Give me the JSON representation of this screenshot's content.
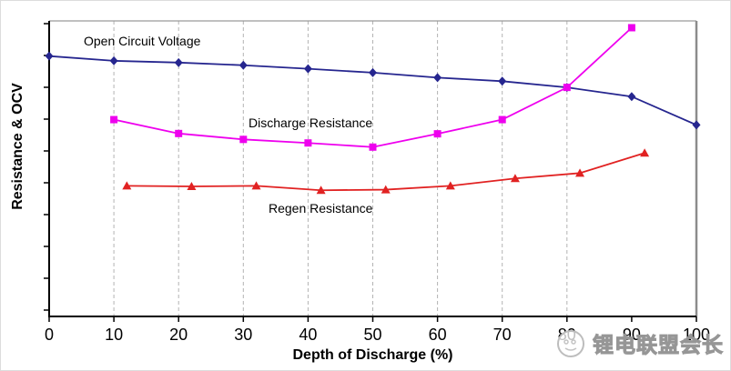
{
  "watermark": {
    "text": "锂电联盟会长",
    "logo": "circle-face-logo"
  },
  "chart_data": {
    "type": "line",
    "title": "",
    "xlabel": "Depth of Discharge (%)",
    "ylabel": "Resistance & OCV",
    "xlim": [
      0,
      100
    ],
    "ylim": [
      0,
      10
    ],
    "x_ticks": [
      0,
      10,
      20,
      30,
      40,
      50,
      60,
      70,
      80,
      90,
      100
    ],
    "x_tick_labels": [
      "0",
      "10",
      "20",
      "30",
      "40",
      "50",
      "60",
      "70",
      "80",
      "90",
      "100"
    ],
    "y_tick_labels": [],
    "y_axis_note": "no numeric labels on y axis (relative 0-10 scale used)",
    "grid_x": [
      10,
      20,
      30,
      40,
      50,
      60,
      70,
      80
    ],
    "grid_style": "vertical dashed light gray",
    "legend": "inline annotations next to each line",
    "colors": {
      "ocv": "#26268f",
      "discharge": "#ee00ee",
      "regen": "#e12222",
      "grid": "#b3b3b3",
      "axis": "#000000",
      "frame": "#8c8c8c"
    },
    "series": [
      {
        "name": "Open Circuit Voltage",
        "color": "#26268f",
        "marker": "diamond",
        "x": [
          0,
          10,
          20,
          30,
          40,
          50,
          60,
          70,
          80,
          90,
          100
        ],
        "y": [
          8.81,
          8.65,
          8.59,
          8.5,
          8.38,
          8.25,
          8.08,
          7.96,
          7.75,
          7.44,
          6.48
        ]
      },
      {
        "name": "Discharge Resistance",
        "color": "#ee00ee",
        "marker": "square",
        "x": [
          10,
          20,
          30,
          40,
          50,
          60,
          70,
          80,
          90
        ],
        "y": [
          6.66,
          6.19,
          5.99,
          5.87,
          5.73,
          6.18,
          6.66,
          7.75,
          9.77
        ]
      },
      {
        "name": "Regen Resistance",
        "color": "#e12222",
        "marker": "triangle",
        "x": [
          12,
          22,
          32,
          42,
          52,
          62,
          72,
          82,
          92
        ],
        "y": [
          4.42,
          4.4,
          4.42,
          4.27,
          4.29,
          4.42,
          4.67,
          4.85,
          5.53
        ]
      }
    ],
    "annotations": [
      {
        "text": "Open Circuit Voltage",
        "x": 15,
        "y": 9.3
      },
      {
        "text": "Discharge Resistance",
        "x": 41,
        "y": 6.6
      },
      {
        "text": "Regen Resistance",
        "x": 42,
        "y": 3.6
      }
    ]
  }
}
